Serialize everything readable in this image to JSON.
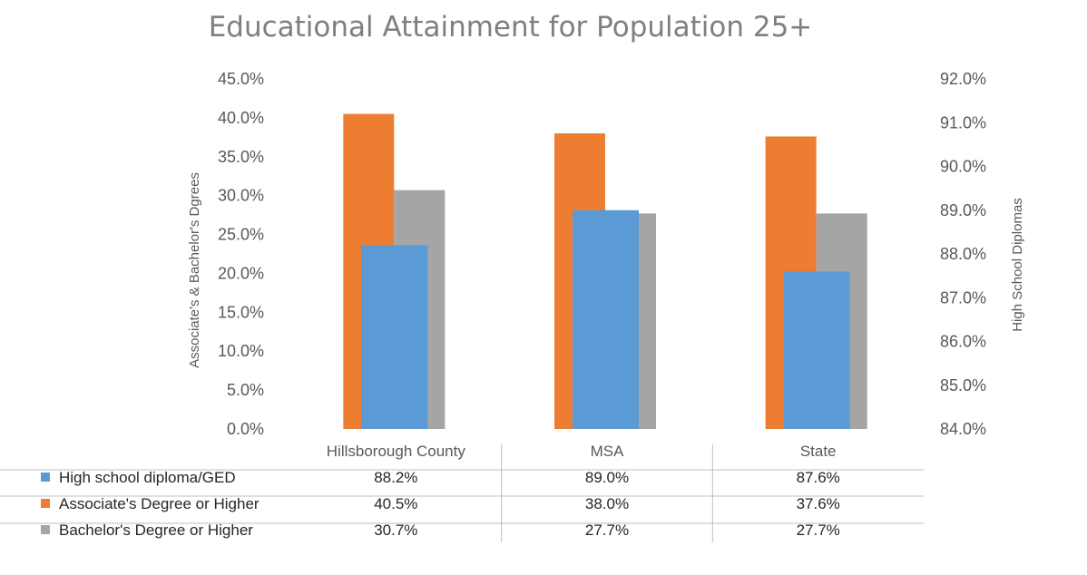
{
  "chart_data": {
    "type": "bar",
    "title": "Educational Attainment for Population 25+",
    "categories": [
      "Hillsborough County",
      "MSA",
      "State"
    ],
    "y_left": {
      "label": "Associate's & Bachelor's Dgrees",
      "range": [
        0,
        45
      ],
      "ticks": [
        "0.0%",
        "5.0%",
        "10.0%",
        "15.0%",
        "20.0%",
        "25.0%",
        "30.0%",
        "35.0%",
        "40.0%",
        "45.0%"
      ]
    },
    "y_right": {
      "label": "High School Diplomas",
      "range": [
        84,
        92
      ],
      "ticks": [
        "84.0%",
        "85.0%",
        "86.0%",
        "87.0%",
        "88.0%",
        "89.0%",
        "90.0%",
        "91.0%",
        "92.0%"
      ]
    },
    "series": [
      {
        "name": "High school diploma/GED",
        "axis": "right",
        "color": "#5b9bd5",
        "values": [
          88.2,
          89.0,
          87.6
        ],
        "labels": [
          "88.2%",
          "89.0%",
          "87.6%"
        ]
      },
      {
        "name": "Associate's Degree or Higher",
        "axis": "left",
        "color": "#ed7d31",
        "values": [
          40.5,
          38.0,
          37.6
        ],
        "labels": [
          "40.5%",
          "38.0%",
          "37.6%"
        ]
      },
      {
        "name": "Bachelor's Degree or Higher",
        "axis": "left",
        "color": "#a5a5a5",
        "values": [
          30.7,
          27.7,
          27.7
        ],
        "labels": [
          "30.7%",
          "27.7%",
          "27.7%"
        ]
      }
    ],
    "data_table": true,
    "grid": false
  }
}
